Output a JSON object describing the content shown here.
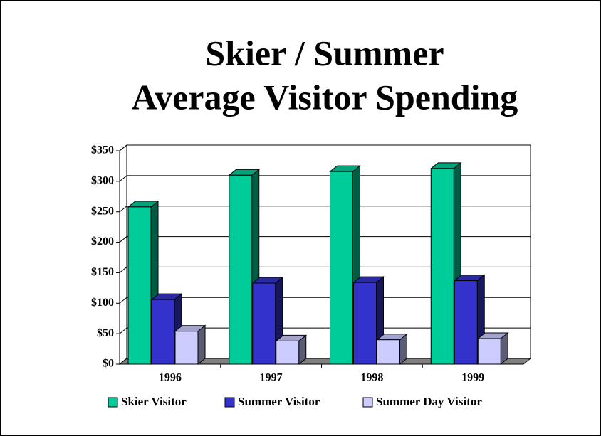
{
  "chart_data": {
    "type": "bar",
    "three_d": true,
    "title": [
      "Skier / Summer",
      "Average Visitor Spending"
    ],
    "categories": [
      "1996",
      "1997",
      "1998",
      "1999"
    ],
    "series": [
      {
        "name": "Skier Visitor",
        "color": "#00cc99",
        "values": [
          258,
          310,
          316,
          321
        ]
      },
      {
        "name": "Summer Visitor",
        "color": "#3333cc",
        "values": [
          106,
          133,
          134,
          137
        ]
      },
      {
        "name": "Summer Day Visitor",
        "color": "#ccccff",
        "values": [
          54,
          38,
          40,
          42
        ]
      }
    ],
    "ylim": [
      0,
      350
    ],
    "yticks": [
      {
        "value": 0,
        "label": "$0"
      },
      {
        "value": 50,
        "label": "$50"
      },
      {
        "value": 100,
        "label": "$100"
      },
      {
        "value": 150,
        "label": "$150"
      },
      {
        "value": 200,
        "label": "$200"
      },
      {
        "value": 250,
        "label": "$250"
      },
      {
        "value": 300,
        "label": "$300"
      },
      {
        "value": 350,
        "label": "$350"
      }
    ],
    "grid": true
  }
}
